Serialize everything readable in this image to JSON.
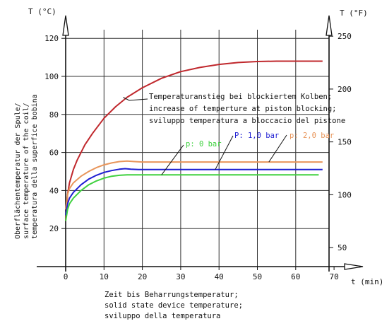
{
  "chart_data": {
    "type": "line",
    "left_axis_title": "T (°C)",
    "right_axis_title": "T (°F)",
    "x_axis_title": "t (min)",
    "xlim": [
      0,
      70
    ],
    "ylim": [
      0,
      120
    ],
    "grid": true,
    "x_ticks": [
      "0",
      "10",
      "20",
      "30",
      "40",
      "50",
      "60",
      "70"
    ],
    "y_ticks_c": [
      "20",
      "40",
      "60",
      "80",
      "100",
      "120"
    ],
    "y_ticks_f": [
      "50",
      "100",
      "150",
      "200",
      "250"
    ],
    "ylabel_lines": [
      "Oberflächentemperatur der Spule/",
      "surface temperature of the coil/",
      "temperatura della superfice bobina"
    ],
    "xlabel_lines": [
      "Zeit bis Beharrungstemperatur;",
      "solid state device temperature;",
      "sviluppo della temperatura"
    ],
    "series": [
      {
        "name": "",
        "color": "#c0282d",
        "x": [
          0,
          0.5,
          1,
          2,
          3,
          5,
          7,
          10,
          13,
          16,
          20,
          25,
          30,
          35,
          40,
          45,
          50,
          55,
          60,
          67
        ],
        "y": [
          24,
          38,
          44,
          51,
          56,
          64,
          70,
          78,
          84,
          89,
          94,
          99,
          102.5,
          104.7,
          106.3,
          107.3,
          107.8,
          108,
          108,
          108
        ]
      },
      {
        "name": "p: 2,0 bar",
        "color": "#e8955a",
        "x": [
          0,
          0.5,
          1,
          2,
          4,
          6,
          8,
          10,
          12,
          14,
          16,
          18,
          20,
          30,
          40,
          50,
          60,
          67
        ],
        "y": [
          30,
          38,
          41,
          44,
          47.5,
          50,
          52,
          53.5,
          54.5,
          55.2,
          55.5,
          55.2,
          55,
          55,
          55,
          55,
          55,
          55
        ]
      },
      {
        "name": "P: 1,0 bar",
        "color": "#1e1ed2",
        "x": [
          0,
          0.5,
          1,
          2,
          4,
          6,
          8,
          10,
          12,
          14,
          15.5,
          17,
          19,
          20,
          30,
          40,
          50,
          60,
          67
        ],
        "y": [
          27,
          33,
          36,
          39,
          43,
          46,
          48,
          49.5,
          50.5,
          51.2,
          51.5,
          51.2,
          51,
          51,
          51,
          51,
          51,
          51,
          51
        ]
      },
      {
        "name": "p: 0 bar",
        "color": "#3fd13f",
        "x": [
          0,
          0.5,
          1,
          2,
          4,
          6,
          8,
          10,
          12,
          14,
          16,
          18,
          20,
          30,
          40,
          50,
          60,
          66
        ],
        "y": [
          24,
          30,
          33,
          36,
          40,
          43,
          45,
          46.5,
          47.5,
          48,
          48.2,
          48.2,
          48.2,
          48.2,
          48.2,
          48.2,
          48.2,
          48.2
        ]
      }
    ],
    "annotation_lines": [
      "Temperaturanstieg bei blockiertem Kolben;",
      "increase of temperture at piston blocking;",
      "sviluppo temperatura a bloccacio del pistone"
    ]
  }
}
